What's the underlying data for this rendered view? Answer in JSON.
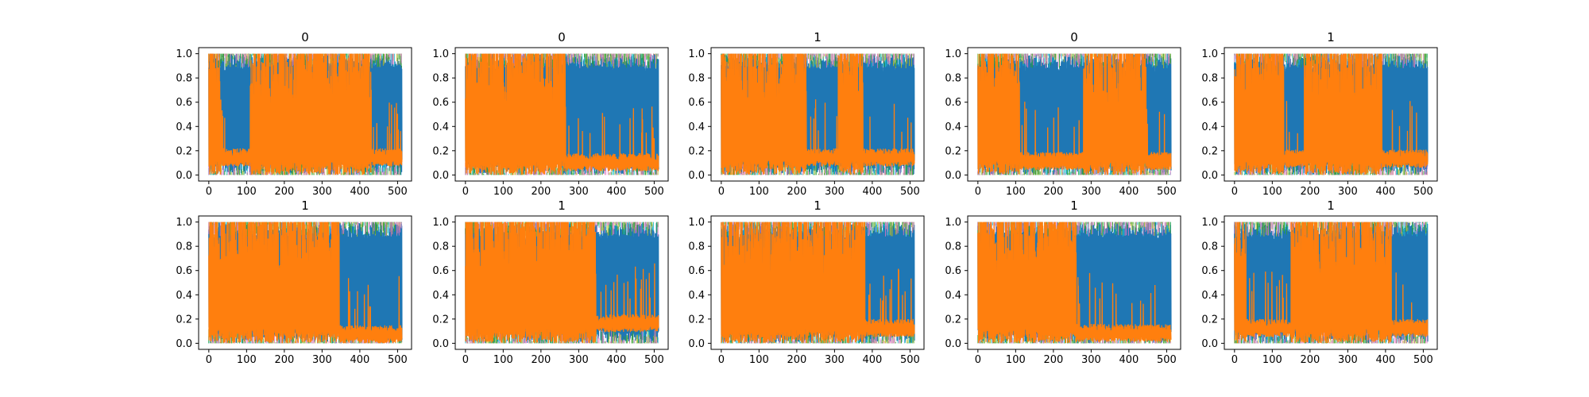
{
  "figure": {
    "background": "#ffffff"
  },
  "chart_data": [
    {
      "type": "line",
      "title": "0",
      "xlim": [
        -27,
        537
      ],
      "ylim": [
        -0.05,
        1.05
      ],
      "xticks": [
        "0",
        "100",
        "200",
        "300",
        "400",
        "500"
      ],
      "yticks": [
        "0.0",
        "0.2",
        "0.4",
        "0.6",
        "0.8",
        "1.0"
      ],
      "grid": false,
      "orange_high_regions": [
        [
          0,
          30
        ],
        [
          110,
          430
        ]
      ],
      "orange_low_level": 0.14
    },
    {
      "type": "line",
      "title": "0",
      "xlim": [
        -27,
        537
      ],
      "ylim": [
        -0.05,
        1.05
      ],
      "xticks": [
        "0",
        "100",
        "200",
        "300",
        "400",
        "500"
      ],
      "yticks": [
        "0.0",
        "0.2",
        "0.4",
        "0.6",
        "0.8",
        "1.0"
      ],
      "grid": false,
      "orange_high_regions": [
        [
          0,
          265
        ]
      ],
      "orange_low_level": 0.1
    },
    {
      "type": "line",
      "title": "1",
      "xlim": [
        -27,
        537
      ],
      "ylim": [
        -0.05,
        1.05
      ],
      "xticks": [
        "0",
        "100",
        "200",
        "300",
        "400",
        "500"
      ],
      "yticks": [
        "0.0",
        "0.2",
        "0.4",
        "0.6",
        "0.8",
        "1.0"
      ],
      "grid": false,
      "orange_high_regions": [
        [
          0,
          225
        ],
        [
          310,
          375
        ]
      ],
      "orange_low_level": 0.14
    },
    {
      "type": "line",
      "title": "0",
      "xlim": [
        -27,
        537
      ],
      "ylim": [
        -0.05,
        1.05
      ],
      "xticks": [
        "0",
        "100",
        "200",
        "300",
        "400",
        "500"
      ],
      "yticks": [
        "0.0",
        "0.2",
        "0.4",
        "0.6",
        "0.8",
        "1.0"
      ],
      "grid": false,
      "orange_high_regions": [
        [
          0,
          110
        ],
        [
          280,
          445
        ]
      ],
      "orange_low_level": 0.11
    },
    {
      "type": "line",
      "title": "1",
      "xlim": [
        -27,
        537
      ],
      "ylim": [
        -0.05,
        1.05
      ],
      "xticks": [
        "0",
        "100",
        "200",
        "300",
        "400",
        "500"
      ],
      "yticks": [
        "0.0",
        "0.2",
        "0.4",
        "0.6",
        "0.8",
        "1.0"
      ],
      "grid": false,
      "orange_high_regions": [
        [
          0,
          130
        ],
        [
          185,
          390
        ]
      ],
      "orange_low_level": 0.13
    },
    {
      "type": "line",
      "title": "1",
      "xlim": [
        -27,
        537
      ],
      "ylim": [
        -0.05,
        1.05
      ],
      "xticks": [
        "0",
        "100",
        "200",
        "300",
        "400",
        "500"
      ],
      "yticks": [
        "0.0",
        "0.2",
        "0.4",
        "0.6",
        "0.8",
        "1.0"
      ],
      "grid": false,
      "orange_high_regions": [
        [
          0,
          345
        ]
      ],
      "orange_low_level": 0.07
    },
    {
      "type": "line",
      "title": "1",
      "xlim": [
        -27,
        537
      ],
      "ylim": [
        -0.05,
        1.05
      ],
      "xticks": [
        "0",
        "100",
        "200",
        "300",
        "400",
        "500"
      ],
      "yticks": [
        "0.0",
        "0.2",
        "0.4",
        "0.6",
        "0.8",
        "1.0"
      ],
      "grid": false,
      "orange_high_regions": [
        [
          0,
          345
        ]
      ],
      "orange_low_level": 0.16
    },
    {
      "type": "line",
      "title": "1",
      "xlim": [
        -27,
        537
      ],
      "ylim": [
        -0.05,
        1.05
      ],
      "xticks": [
        "0",
        "100",
        "200",
        "300",
        "400",
        "500"
      ],
      "yticks": [
        "0.0",
        "0.2",
        "0.4",
        "0.6",
        "0.8",
        "1.0"
      ],
      "grid": false,
      "orange_high_regions": [
        [
          0,
          380
        ]
      ],
      "orange_low_level": 0.12
    },
    {
      "type": "line",
      "title": "1",
      "xlim": [
        -27,
        537
      ],
      "ylim": [
        -0.05,
        1.05
      ],
      "xticks": [
        "0",
        "100",
        "200",
        "300",
        "400",
        "500"
      ],
      "yticks": [
        "0.0",
        "0.2",
        "0.4",
        "0.6",
        "0.8",
        "1.0"
      ],
      "grid": false,
      "orange_high_regions": [
        [
          0,
          260
        ]
      ],
      "orange_low_level": 0.08
    },
    {
      "type": "line",
      "title": "1",
      "xlim": [
        -27,
        537
      ],
      "ylim": [
        -0.05,
        1.05
      ],
      "xticks": [
        "0",
        "100",
        "200",
        "300",
        "400",
        "500"
      ],
      "yticks": [
        "0.0",
        "0.2",
        "0.4",
        "0.6",
        "0.8",
        "1.0"
      ],
      "grid": false,
      "orange_high_regions": [
        [
          0,
          30
        ],
        [
          150,
          415
        ]
      ],
      "orange_low_level": 0.12
    }
  ],
  "series_colors": {
    "blue": "#1f77b4",
    "orange": "#ff7f0e",
    "teal": "#17becf",
    "olive": "#bcbd22",
    "green": "#2ca02c",
    "pink": "#e377c2"
  }
}
